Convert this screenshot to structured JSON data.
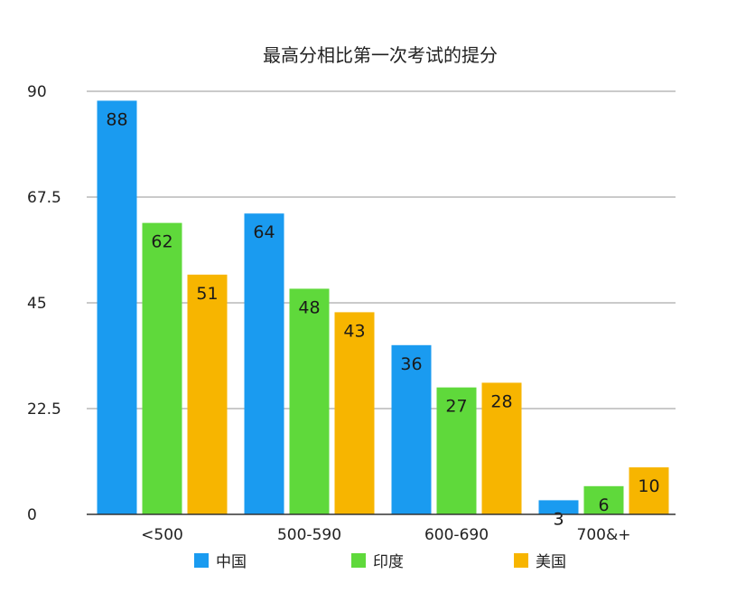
{
  "chart_data": {
    "type": "bar",
    "title": "最高分相比第一次考试的提分",
    "categories": [
      "<500",
      "500-590",
      "600-690",
      "700&+"
    ],
    "series": [
      {
        "name": "中国",
        "color": "#1a9bf0",
        "values": [
          88,
          64,
          36,
          3
        ]
      },
      {
        "name": "印度",
        "color": "#5fd93b",
        "values": [
          62,
          48,
          27,
          6
        ]
      },
      {
        "name": "美国",
        "color": "#f7b500",
        "values": [
          51,
          43,
          28,
          10
        ]
      }
    ],
    "ylim": [
      0,
      90
    ],
    "yticks": [
      "0",
      "22.5",
      "45",
      "67.5",
      "90"
    ],
    "grid": true,
    "legend_position": "bottom"
  }
}
